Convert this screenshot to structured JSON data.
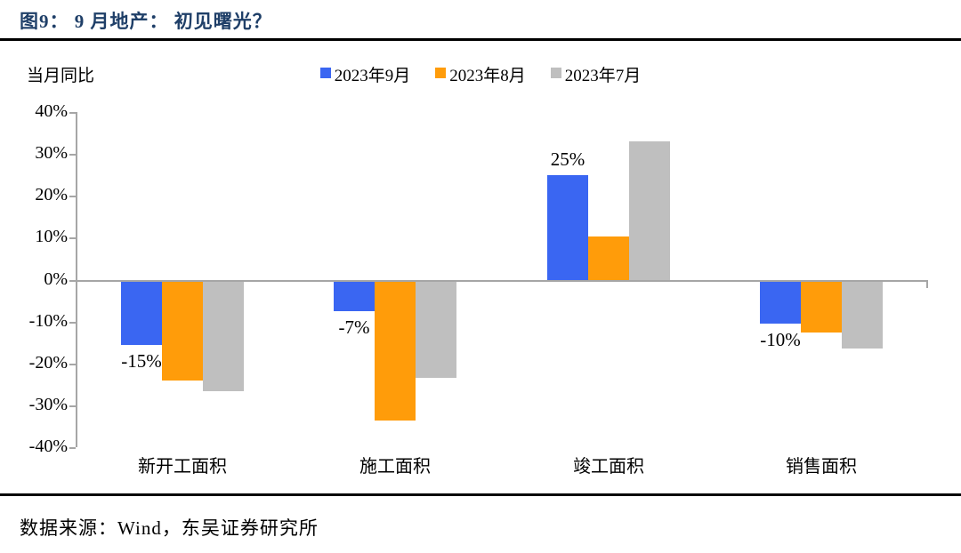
{
  "figure": {
    "title": "图9： 9 月地产： 初见曙光？",
    "unit_note": "当月同比",
    "source": "数据来源：Wind，东吴证券研究所"
  },
  "chart_data": {
    "type": "bar",
    "title": "图9： 9 月地产： 初见曙光？",
    "ylabel": "当月同比",
    "xlabel": "",
    "categories": [
      "新开工面积",
      "施工面积",
      "竣工面积",
      "销售面积"
    ],
    "series": [
      {
        "name": "2023年9月",
        "color": "#3A66F2",
        "values": [
          -15,
          -7,
          25,
          -10
        ]
      },
      {
        "name": "2023年8月",
        "color": "#FF9C0A",
        "values": [
          -23.5,
          -33,
          10.5,
          -12
        ]
      },
      {
        "name": "2023年7月",
        "color": "#BFBFBF",
        "values": [
          -26,
          -23,
          33,
          -16
        ]
      }
    ],
    "data_labels": [
      {
        "category_index": 0,
        "series_index": 0,
        "text": "-15%"
      },
      {
        "category_index": 1,
        "series_index": 0,
        "text": "-7%"
      },
      {
        "category_index": 2,
        "series_index": 0,
        "text": "25%"
      },
      {
        "category_index": 3,
        "series_index": 0,
        "text": "-10%"
      }
    ],
    "ylim": [
      -40,
      40
    ],
    "ytick_step": 10,
    "ytick_labels": [
      "40%",
      "30%",
      "20%",
      "10%",
      "0%",
      "-10%",
      "-20%",
      "-30%",
      "-40%"
    ],
    "grid": false,
    "legend_position": "top-center"
  },
  "colors": {
    "title": "#1F3F68",
    "axis": "#A6A6A6",
    "rule": "#000000",
    "text": "#000000",
    "background": "#FFFFFF"
  }
}
